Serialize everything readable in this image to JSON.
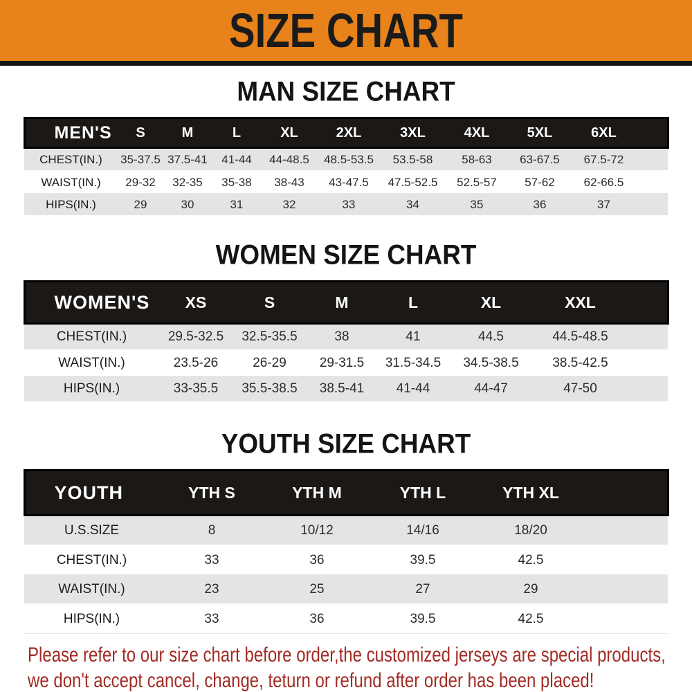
{
  "banner": {
    "title": "SIZE CHART",
    "bg_color": "#E8821A",
    "text_color": "#1b1b1b"
  },
  "men": {
    "heading": "MAN SIZE CHART",
    "table": {
      "label": "MEN'S",
      "columns": [
        "S",
        "M",
        "L",
        "XL",
        "2XL",
        "3XL",
        "4XL",
        "5XL",
        "6XL"
      ],
      "rows": [
        {
          "label": "CHEST(IN.)",
          "values": [
            "35-37.5",
            "37.5-41",
            "41-44",
            "44-48.5",
            "48.5-53.5",
            "53.5-58",
            "58-63",
            "63-67.5",
            "67.5-72"
          ]
        },
        {
          "label": "WAIST(IN.)",
          "values": [
            "29-32",
            "32-35",
            "35-38",
            "38-43",
            "43-47.5",
            "47.5-52.5",
            "52.5-57",
            "57-62",
            "62-66.5"
          ]
        },
        {
          "label": "HIPS(IN.)",
          "values": [
            "29",
            "30",
            "31",
            "32",
            "33",
            "34",
            "35",
            "36",
            "37"
          ]
        }
      ]
    }
  },
  "women": {
    "heading": "WOMEN SIZE CHART",
    "table": {
      "label": "WOMEN'S",
      "columns": [
        "XS",
        "S",
        "M",
        "L",
        "XL",
        "XXL"
      ],
      "rows": [
        {
          "label": "CHEST(IN.)",
          "values": [
            "29.5-32.5",
            "32.5-35.5",
            "38",
            "41",
            "44.5",
            "44.5-48.5"
          ]
        },
        {
          "label": "WAIST(IN.)",
          "values": [
            "23.5-26",
            "26-29",
            "29-31.5",
            "31.5-34.5",
            "34.5-38.5",
            "38.5-42.5"
          ]
        },
        {
          "label": "HIPS(IN.)",
          "values": [
            "33-35.5",
            "35.5-38.5",
            "38.5-41",
            "41-44",
            "44-47",
            "47-50"
          ]
        }
      ]
    }
  },
  "youth": {
    "heading": "YOUTH SIZE CHART",
    "table": {
      "label": "YOUTH",
      "columns": [
        "YTH S",
        "YTH M",
        "YTH L",
        "YTH XL"
      ],
      "rows": [
        {
          "label": "U.S.SIZE",
          "values": [
            "8",
            "10/12",
            "14/16",
            "18/20"
          ]
        },
        {
          "label": "CHEST(IN.)",
          "values": [
            "33",
            "36",
            "39.5",
            "42.5"
          ]
        },
        {
          "label": "WAIST(IN.)",
          "values": [
            "23",
            "25",
            "27",
            "29"
          ]
        },
        {
          "label": "HIPS(IN.)",
          "values": [
            "33",
            "36",
            "39.5",
            "42.5"
          ]
        }
      ]
    }
  },
  "disclaimer": {
    "line1": "Please refer to our size chart before order,the customized jerseys are special products,",
    "line2": "we don't accept cancel, change, teturn or refund after order has been placed!",
    "text_color": "#A22B24"
  }
}
